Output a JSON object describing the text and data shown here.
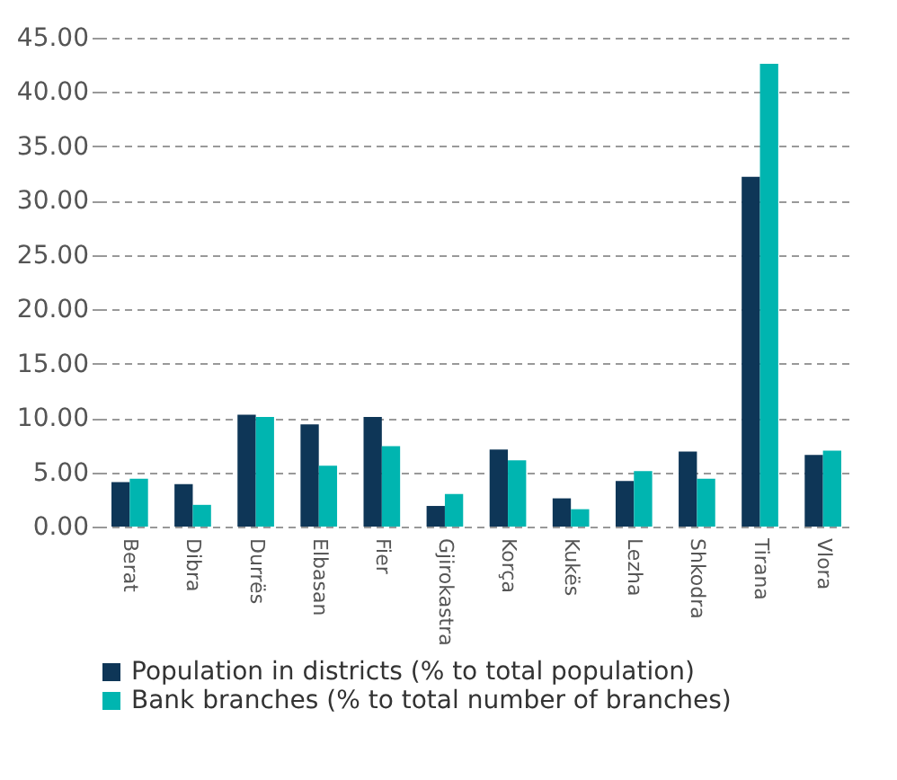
{
  "chart_data": {
    "type": "bar",
    "categories": [
      "Berat",
      "Dibra",
      "Durrës",
      "Elbasan",
      "Fier",
      "Gjirokastra",
      "Korça",
      "Kukës",
      "Lezha",
      "Shkodra",
      "Tirana",
      "Vlora"
    ],
    "series": [
      {
        "name": "Population in districts (% to total population)",
        "color": "#0e3657",
        "values": [
          4.1,
          3.9,
          10.3,
          9.4,
          10.1,
          1.9,
          7.1,
          2.6,
          4.2,
          6.9,
          32.2,
          6.6
        ]
      },
      {
        "name": "Bank branches (% to total number of branches)",
        "color": "#00b5b0",
        "values": [
          4.4,
          2.0,
          10.1,
          5.6,
          7.4,
          3.0,
          6.1,
          1.6,
          5.1,
          4.4,
          42.6,
          7.0
        ]
      }
    ],
    "ylim": [
      0,
      45
    ],
    "yticks": [
      {
        "value": 0,
        "label": "0.00"
      },
      {
        "value": 5,
        "label": "5.00"
      },
      {
        "value": 10,
        "label": "10.00"
      },
      {
        "value": 15,
        "label": "15.00"
      },
      {
        "value": 20,
        "label": "20.00"
      },
      {
        "value": 25,
        "label": "25.00"
      },
      {
        "value": 30,
        "label": "30.00"
      },
      {
        "value": 35,
        "label": "35.00"
      },
      {
        "value": 40,
        "label": "40.00"
      },
      {
        "value": 45,
        "label": "45.00"
      }
    ],
    "grid": "y",
    "line_style": "dashed",
    "legend": "bottom"
  }
}
